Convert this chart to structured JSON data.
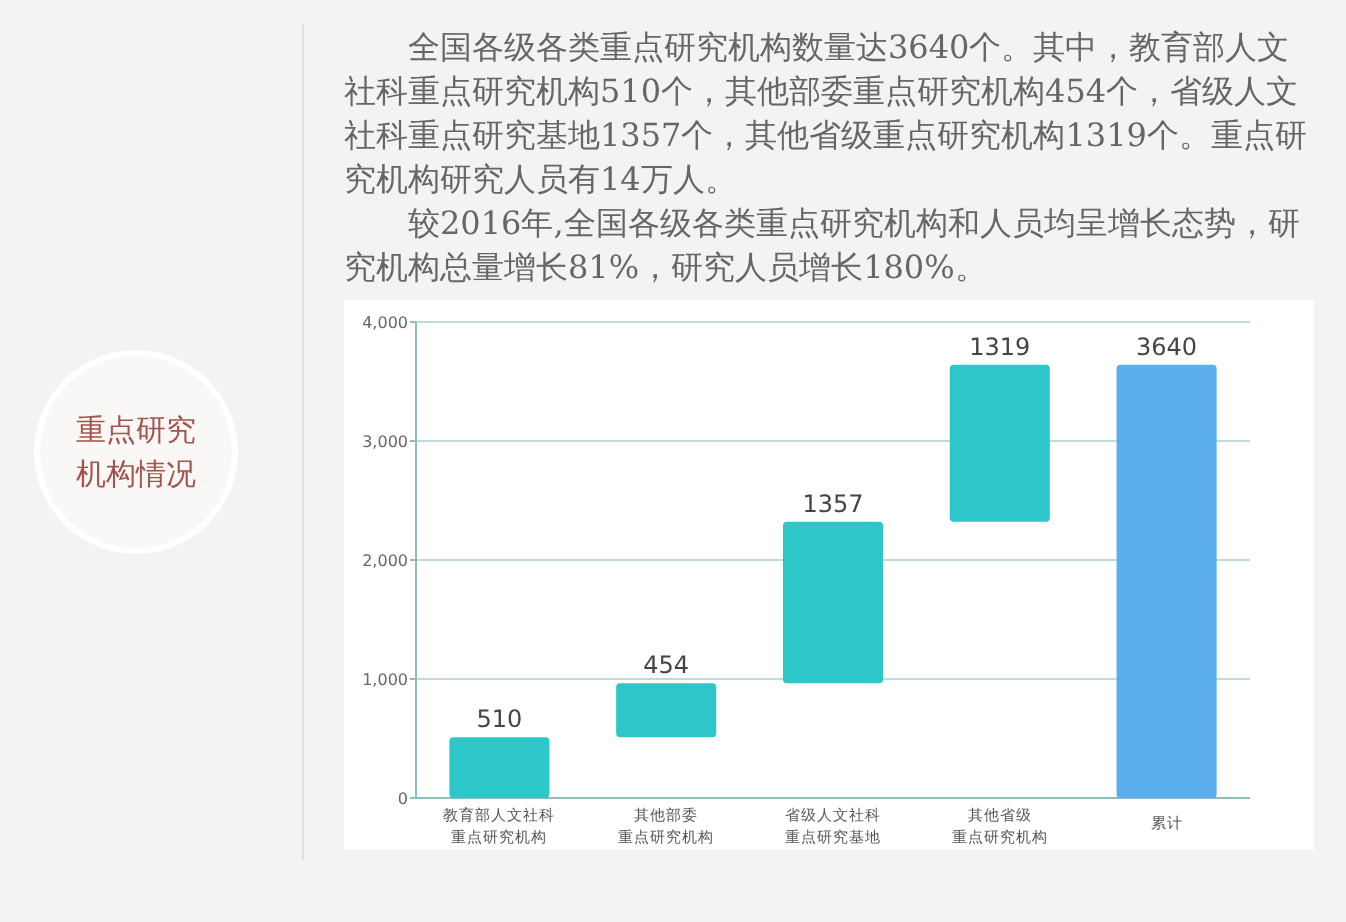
{
  "chart_data": {
    "type": "bar",
    "title": "重点研究机构情况",
    "annotations": [
      "全国各级各类重点研究机构数量达3640个。其中，教育部人文社科重点研究机构510个，其他部委重点研究机构454个，省级人文社科重点研究基地1357个，其他省级重点研究机构1319个。重点研究机构研究人员有14万人。",
      "较2016年,全国各级各类重点研究机构和人员均呈增长态势，研究机构总量增长81%，研究人员增长180%。"
    ],
    "categories": [
      "教育部人文社科重点研究机构",
      "其他部委重点研究机构",
      "省级人文社科重点研究基地",
      "其他省级重点研究机构",
      "累计"
    ],
    "values": [
      510,
      454,
      1357,
      1319,
      3640
    ],
    "base": [
      0,
      510,
      964,
      2321,
      0
    ],
    "colors": [
      "#2ec7c9",
      "#2ec7c9",
      "#2ec7c9",
      "#2ec7c9",
      "#5aaeee"
    ],
    "ylim": [
      0,
      4000
    ],
    "yticks": [
      0,
      {
        "value": 1000,
        "label": "1,000"
      },
      {
        "value": 2000,
        "label": "2,000"
      },
      {
        "value": 3000,
        "label": "3,000"
      },
      {
        "value": 4000,
        "label": "4,000"
      }
    ],
    "grid": "y",
    "data_labels": true
  }
}
